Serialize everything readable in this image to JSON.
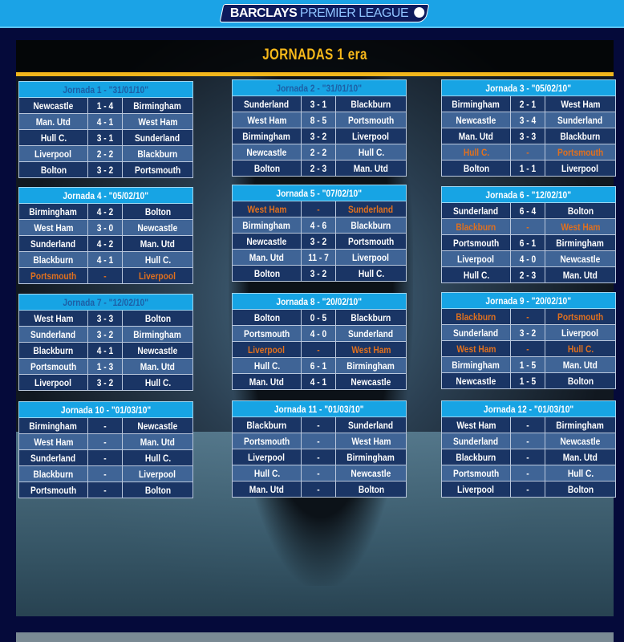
{
  "banner": {
    "logo_text_1": "BARCLAYS",
    "logo_text_2": "PREMIER LEAGUE"
  },
  "page_title": "JORNADAS 1 era",
  "colors": {
    "banner": "#1ba3e6",
    "title": "#f7b81a",
    "header": "#17a4e4",
    "pending_highlight": "#e0701e",
    "row_dark": "#1a3565",
    "row_light": "#3f6496"
  },
  "jornadas": [
    {
      "title": "Jornada 1 - \"31/01/10\"",
      "matches": [
        {
          "home": "Newcastle",
          "score": "1 - 4",
          "away": "Birmingham"
        },
        {
          "home": "Man. Utd",
          "score": "4 - 1",
          "away": "West Ham"
        },
        {
          "home": "Hull C.",
          "score": "3 - 1",
          "away": "Sunderland"
        },
        {
          "home": "Liverpool",
          "score": "2 - 2",
          "away": "Blackburn"
        },
        {
          "home": "Bolton",
          "score": "3 - 2",
          "away": "Portsmouth"
        }
      ]
    },
    {
      "title": "Jornada 2 - \"31/01/10\"",
      "matches": [
        {
          "home": "Sunderland",
          "score": "3 - 1",
          "away": "Blackburn"
        },
        {
          "home": "West Ham",
          "score": "8 - 5",
          "away": "Portsmouth"
        },
        {
          "home": "Birmingham",
          "score": "3 - 2",
          "away": "Liverpool"
        },
        {
          "home": "Newcastle",
          "score": "2 - 2",
          "away": "Hull C."
        },
        {
          "home": "Bolton",
          "score": "2 - 3",
          "away": "Man. Utd"
        }
      ]
    },
    {
      "title": "Jornada 3 - \"05/02/10\"",
      "matches": [
        {
          "home": "Birmingham",
          "score": "2 - 1",
          "away": "West Ham"
        },
        {
          "home": "Newcastle",
          "score": "3 - 4",
          "away": "Sunderland"
        },
        {
          "home": "Man. Utd",
          "score": "3 - 3",
          "away": "Blackburn"
        },
        {
          "home": "Hull C.",
          "score": "-",
          "away": "Portsmouth",
          "pending": true
        },
        {
          "home": "Bolton",
          "score": "1 - 1",
          "away": "Liverpool"
        }
      ]
    },
    {
      "title": "Jornada 4 - \"05/02/10\"",
      "matches": [
        {
          "home": "Birmingham",
          "score": "4 - 2",
          "away": "Bolton"
        },
        {
          "home": "West Ham",
          "score": "3 - 0",
          "away": "Newcastle"
        },
        {
          "home": "Sunderland",
          "score": "4 - 2",
          "away": "Man. Utd"
        },
        {
          "home": "Blackburn",
          "score": "4 - 1",
          "away": "Hull C."
        },
        {
          "home": "Portsmouth",
          "score": "-",
          "away": "Liverpool",
          "pending": true
        }
      ]
    },
    {
      "title": "Jornada 5 - \"07/02/10\"",
      "matches": [
        {
          "home": "West Ham",
          "score": "-",
          "away": "Sunderland",
          "pending": true
        },
        {
          "home": "Birmingham",
          "score": "4 - 6",
          "away": "Blackburn"
        },
        {
          "home": "Newcastle",
          "score": "3 - 2",
          "away": "Portsmouth"
        },
        {
          "home": "Man. Utd",
          "score": "11 - 7",
          "away": "Liverpool"
        },
        {
          "home": "Bolton",
          "score": "3 - 2",
          "away": "Hull C."
        }
      ]
    },
    {
      "title": "Jornada 6 - \"12/02/10\"",
      "matches": [
        {
          "home": "Sunderland",
          "score": "6 - 4",
          "away": "Bolton"
        },
        {
          "home": "Blackburn",
          "score": "-",
          "away": "West Ham",
          "pending": true
        },
        {
          "home": "Portsmouth",
          "score": "6 - 1",
          "away": "Birmingham"
        },
        {
          "home": "Liverpool",
          "score": "4 - 0",
          "away": "Newcastle"
        },
        {
          "home": "Hull C.",
          "score": "2 - 3",
          "away": "Man. Utd"
        }
      ]
    },
    {
      "title": "Jornada 7 - \"12/02/10\"",
      "matches": [
        {
          "home": "West Ham",
          "score": "3 - 3",
          "away": "Bolton"
        },
        {
          "home": "Sunderland",
          "score": "3 - 2",
          "away": "Birmingham"
        },
        {
          "home": "Blackburn",
          "score": "4 - 1",
          "away": "Newcastle"
        },
        {
          "home": "Portsmouth",
          "score": "1 - 3",
          "away": "Man. Utd"
        },
        {
          "home": "Liverpool",
          "score": "3 - 2",
          "away": "Hull C."
        }
      ]
    },
    {
      "title": "Jornada 8 - \"20/02/10\"",
      "matches": [
        {
          "home": "Bolton",
          "score": "0 - 5",
          "away": "Blackburn"
        },
        {
          "home": "Portsmouth",
          "score": "4 - 0",
          "away": "Sunderland"
        },
        {
          "home": "Liverpool",
          "score": "-",
          "away": "West Ham",
          "pending": true
        },
        {
          "home": "Hull C.",
          "score": "6 - 1",
          "away": "Birmingham"
        },
        {
          "home": "Man. Utd",
          "score": "4 - 1",
          "away": "Newcastle"
        }
      ]
    },
    {
      "title": "Jornada  9 - \"20/02/10\"",
      "matches": [
        {
          "home": "Blackburn",
          "score": "-",
          "away": "Portsmouth",
          "pending": true
        },
        {
          "home": "Sunderland",
          "score": "3 - 2",
          "away": "Liverpool"
        },
        {
          "home": "West Ham",
          "score": "-",
          "away": "Hull C.",
          "pending": true
        },
        {
          "home": "Birmingham",
          "score": "1 - 5",
          "away": "Man. Utd"
        },
        {
          "home": "Newcastle",
          "score": "1 - 5",
          "away": "Bolton"
        }
      ]
    },
    {
      "title": "Jornada  10 - \"01/03/10\"",
      "matches": [
        {
          "home": "Birmingham",
          "score": "-",
          "away": "Newcastle"
        },
        {
          "home": "West Ham",
          "score": "-",
          "away": "Man. Utd"
        },
        {
          "home": "Sunderland",
          "score": "-",
          "away": "Hull C."
        },
        {
          "home": "Blackburn",
          "score": "-",
          "away": "Liverpool"
        },
        {
          "home": "Portsmouth",
          "score": "-",
          "away": "Bolton"
        }
      ]
    },
    {
      "title": "Jornada  11 - \"01/03/10\"",
      "matches": [
        {
          "home": "Blackburn",
          "score": "-",
          "away": "Sunderland"
        },
        {
          "home": "Portsmouth",
          "score": "-",
          "away": "West Ham"
        },
        {
          "home": "Liverpool",
          "score": "-",
          "away": "Birmingham"
        },
        {
          "home": "Hull C.",
          "score": "-",
          "away": "Newcastle"
        },
        {
          "home": "Man. Utd",
          "score": "-",
          "away": "Bolton"
        }
      ]
    },
    {
      "title": "Jornada  12 - \"01/03/10\"",
      "matches": [
        {
          "home": "West Ham",
          "score": "-",
          "away": "Birmingham"
        },
        {
          "home": "Sunderland",
          "score": "-",
          "away": "Newcastle"
        },
        {
          "home": "Blackburn",
          "score": "-",
          "away": "Man. Utd"
        },
        {
          "home": "Portsmouth",
          "score": "-",
          "away": "Hull C."
        },
        {
          "home": "Liverpool",
          "score": "-",
          "away": "Bolton"
        }
      ]
    }
  ]
}
